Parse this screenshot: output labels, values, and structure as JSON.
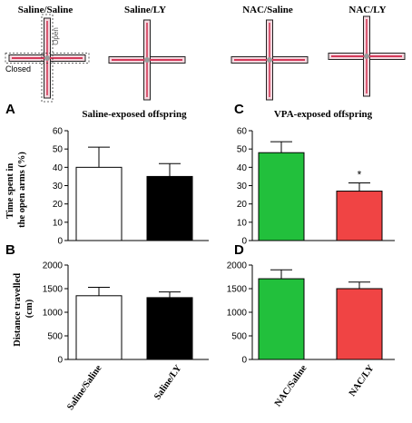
{
  "colors": {
    "saline_saline": "#ffffff",
    "saline_ly": "#000000",
    "nac_saline": "#22c03c",
    "nac_ly": "#f04444",
    "maze_fill": "#f4d7de",
    "maze_track": "#d43a5a"
  },
  "maze": {
    "titles": [
      "Saline/Saline",
      "Saline/LY",
      "NAC/Saline",
      "NAC/LY"
    ],
    "open_label": "Open",
    "closed_label": "Closed"
  },
  "row_labels": {
    "time": "Time spent in the open arms (%)",
    "distance": "Distance travelled (cm)"
  },
  "x_categories": {
    "left": [
      "Saline/Saline",
      "Saline/LY"
    ],
    "right": [
      "NAC/Saline",
      "NAC/LY"
    ]
  },
  "chart_data": [
    {
      "panel": "A",
      "type": "bar",
      "title": "Saline-exposed offspring",
      "categories": [
        "Saline/Saline",
        "Saline/LY"
      ],
      "values": [
        40,
        35
      ],
      "errors": [
        11,
        7
      ],
      "colors": [
        "#ffffff",
        "#000000"
      ],
      "ylabel": "Time spent in the open arms (%)",
      "ylim": [
        0,
        60
      ],
      "yticks": [
        0,
        10,
        20,
        30,
        40,
        50,
        60
      ],
      "significance": [
        "",
        ""
      ]
    },
    {
      "panel": "C",
      "type": "bar",
      "title": "VPA-exposed offspring",
      "categories": [
        "NAC/Saline",
        "NAC/LY"
      ],
      "values": [
        48,
        27
      ],
      "errors": [
        6,
        4.5
      ],
      "colors": [
        "#22c03c",
        "#f04444"
      ],
      "ylabel": "",
      "ylim": [
        0,
        60
      ],
      "yticks": [
        0,
        10,
        20,
        30,
        40,
        50,
        60
      ],
      "significance": [
        "",
        "*"
      ]
    },
    {
      "panel": "B",
      "type": "bar",
      "title": "",
      "categories": [
        "Saline/Saline",
        "Saline/LY"
      ],
      "values": [
        1350,
        1310
      ],
      "errors": [
        180,
        120
      ],
      "colors": [
        "#ffffff",
        "#000000"
      ],
      "ylabel": "Distance travelled (cm)",
      "ylim": [
        0,
        2000
      ],
      "yticks": [
        0,
        500,
        1000,
        1500,
        2000
      ],
      "significance": [
        "",
        ""
      ]
    },
    {
      "panel": "D",
      "type": "bar",
      "title": "",
      "categories": [
        "NAC/Saline",
        "NAC/LY"
      ],
      "values": [
        1710,
        1500
      ],
      "errors": [
        190,
        140
      ],
      "colors": [
        "#22c03c",
        "#f04444"
      ],
      "ylabel": "",
      "ylim": [
        0,
        2000
      ],
      "yticks": [
        0,
        500,
        1000,
        1500,
        2000
      ],
      "significance": [
        "",
        ""
      ]
    }
  ]
}
